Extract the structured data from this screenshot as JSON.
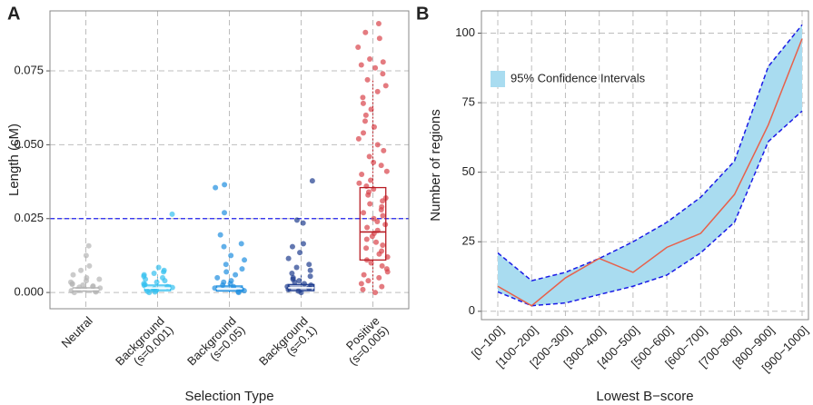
{
  "chart_data": [
    {
      "type": "box",
      "panel": "A",
      "x_label": "Selection Type",
      "y_label": "Length (cM)",
      "categories": [
        [
          "Neutral"
        ],
        [
          "Background",
          "(s=0.001)"
        ],
        [
          "Background",
          "(s=0.05)"
        ],
        [
          "Background",
          "(s=0.1)"
        ],
        [
          "Positive",
          "(s=0.005)"
        ]
      ],
      "colors": [
        "#b5b5b5",
        "#35c0f0",
        "#1f8fe0",
        "#1f3d8f",
        "#d8434a"
      ],
      "box_colors": [
        "#b5b5b5",
        "#35c0f0",
        "#1f8fe0",
        "#1f3d8f",
        "#b81c24"
      ],
      "boxes": [
        {
          "whisker_low": 0,
          "q1": 0.0004,
          "median": 0.001,
          "q3": 0.0016,
          "whisker_high": 0.0034
        },
        {
          "whisker_low": 0,
          "q1": 0.0006,
          "median": 0.0015,
          "q3": 0.0025,
          "whisker_high": 0.0052
        },
        {
          "whisker_low": 0,
          "q1": 0.0005,
          "median": 0.0013,
          "q3": 0.0022,
          "whisker_high": 0.0045
        },
        {
          "whisker_low": 0,
          "q1": 0.0006,
          "median": 0.0016,
          "q3": 0.0027,
          "whisker_high": 0.0058
        },
        {
          "whisker_low": 0,
          "q1": 0.011,
          "median": 0.0205,
          "q3": 0.0355,
          "whisker_high": 0.072
        }
      ],
      "points": [
        [
          0.0158,
          0.0125,
          0.009,
          0.0075,
          0.006,
          0.005,
          0.0045,
          0.004,
          0.0035,
          0.003,
          0.0028,
          0.0025,
          0.0022,
          0.002,
          0.0018,
          0.0015,
          0.0012,
          0.001,
          0.0008,
          0.0006,
          0.0004,
          0.0002,
          0
        ],
        [
          0.0265,
          0.0085,
          0.0075,
          0.007,
          0.0065,
          0.006,
          0.0055,
          0.005,
          0.0045,
          0.004,
          0.0035,
          0.003,
          0.0027,
          0.0024,
          0.002,
          0.0017,
          0.0013,
          0.001,
          0.0007,
          0.0004,
          0.0002,
          0
        ],
        [
          0.0365,
          0.0355,
          0.027,
          0.0195,
          0.0165,
          0.0155,
          0.0125,
          0.011,
          0.0095,
          0.008,
          0.007,
          0.006,
          0.005,
          0.004,
          0.0035,
          0.003,
          0.0025,
          0.002,
          0.0015,
          0.001,
          0.0006,
          0.0003,
          0
        ],
        [
          0.0378,
          0.0245,
          0.0235,
          0.0165,
          0.0155,
          0.0135,
          0.0115,
          0.0095,
          0.0085,
          0.0075,
          0.0065,
          0.0055,
          0.005,
          0.0045,
          0.004,
          0.0035,
          0.003,
          0.0025,
          0.002,
          0.0015,
          0.001,
          0.0005,
          0
        ],
        [
          0.091,
          0.088,
          0.086,
          0.083,
          0.079,
          0.078,
          0.077,
          0.076,
          0.074,
          0.072,
          0.07,
          0.068,
          0.066,
          0.064,
          0.062,
          0.06,
          0.058,
          0.056,
          0.054,
          0.052,
          0.05,
          0.048,
          0.046,
          0.044,
          0.043,
          0.041,
          0.04,
          0.038,
          0.037,
          0.036,
          0.035,
          0.034,
          0.033,
          0.032,
          0.031,
          0.03,
          0.029,
          0.028,
          0.027,
          0.026,
          0.025,
          0.024,
          0.023,
          0.022,
          0.021,
          0.02,
          0.019,
          0.018,
          0.017,
          0.016,
          0.015,
          0.014,
          0.013,
          0.012,
          0.011,
          0.01,
          0.009,
          0.008,
          0.007,
          0.006,
          0.005,
          0.004,
          0.003,
          0.002,
          0.001,
          0
        ]
      ],
      "hline": 0.025,
      "hline_color": "#2222ee",
      "ylim": [
        -0.0055,
        0.0953
      ],
      "yticks": [
        {
          "value": 0,
          "label": "0.000"
        },
        {
          "value": 0.025,
          "label": "0.025"
        },
        {
          "value": 0.05,
          "label": "0.050"
        },
        {
          "value": 0.075,
          "label": "0.075"
        }
      ],
      "grid": true
    },
    {
      "type": "line",
      "panel": "B",
      "x_label": "Lowest B−score",
      "y_label": "Number of regions",
      "categories": [
        "[0−100]",
        "[100−200]",
        "[200−300]",
        "[300−400]",
        "[400−500]",
        "[500−600]",
        "[600−700]",
        "[700−800]",
        "[800−900]",
        "[900−1000]"
      ],
      "values": [
        9,
        2,
        12,
        19,
        14,
        23,
        28,
        42,
        67,
        98
      ],
      "color": "#e8604a",
      "ci": {
        "name": "95% Confidence Intervals",
        "lower": [
          7,
          2,
          3,
          6,
          9,
          13,
          21,
          32,
          61,
          72
        ],
        "upper": [
          21,
          11,
          14,
          19,
          25,
          32,
          41,
          54,
          88,
          103
        ],
        "fill": "#a9dcf0",
        "line_color": "#1a1ae6"
      },
      "legend": "top-left",
      "ylim": [
        -3,
        108
      ],
      "yticks": [
        0,
        25,
        50,
        75,
        100
      ],
      "grid": true
    }
  ]
}
